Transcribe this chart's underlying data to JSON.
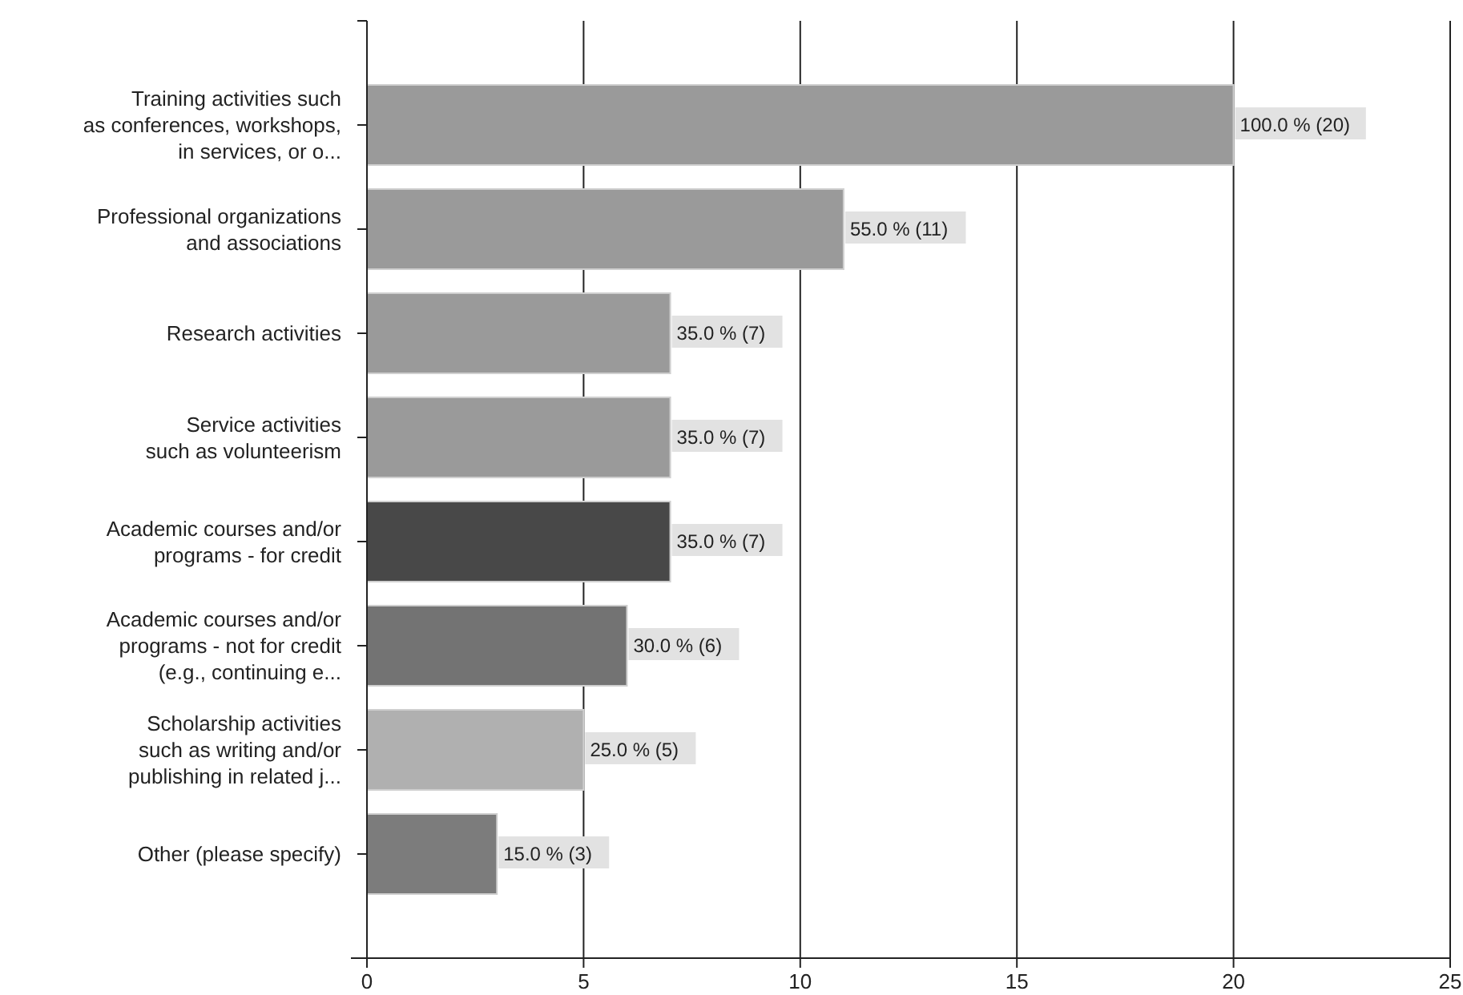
{
  "chart_data": {
    "type": "bar",
    "orientation": "horizontal",
    "categories": [
      "Training activities such\nas conferences, workshops,\nin services, or o...",
      "Professional organizations\nand associations",
      "Research activities",
      "Service activities\nsuch as volunteerism",
      "Academic courses and/or\nprograms - for credit",
      "Academic courses and/or\nprograms - not for credit\n(e.g., continuing e...",
      "Scholarship activities\nsuch as writing and/or\npublishing in related j...",
      "Other (please specify)"
    ],
    "values": [
      20,
      11,
      7,
      7,
      7,
      6,
      5,
      3
    ],
    "colors": [
      "#9a9a9a",
      "#9a9a9a",
      "#9a9a9a",
      "#9a9a9a",
      "#484848",
      "#737373",
      "#b0b0b0",
      "#7c7c7c"
    ],
    "value_labels": [
      "100.0 % (20)",
      "55.0 % (11)",
      "35.0 % (7)",
      "35.0 % (7)",
      "35.0 % (7)",
      "30.0 % (6)",
      "25.0 % (5)",
      "15.0 % (3)"
    ],
    "xlim": [
      0,
      25
    ],
    "xticks": [
      0,
      5,
      10,
      15,
      20,
      25
    ],
    "grid": "x"
  }
}
